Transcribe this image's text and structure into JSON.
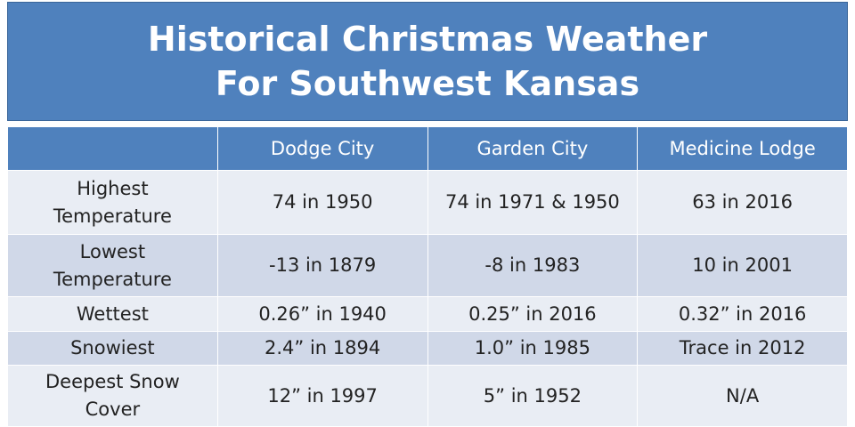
{
  "header": {
    "title": [
      "Historical Christmas Weather",
      "For Southwest Kansas"
    ]
  },
  "table": {
    "columns": [
      "Dodge City",
      "Garden City",
      "Medicine Lodge"
    ],
    "rows": [
      {
        "label": [
          "Highest",
          "Temperature"
        ],
        "cells": [
          "74 in 1950",
          "74 in 1971 & 1950",
          "63 in 2016"
        ]
      },
      {
        "label": [
          "Lowest",
          "Temperature"
        ],
        "cells": [
          "-13 in 1879",
          "-8 in 1983",
          "10 in 2001"
        ]
      },
      {
        "label": [
          "Wettest"
        ],
        "cells": [
          "0.26” in 1940",
          "0.25” in 2016",
          "0.32” in 2016"
        ]
      },
      {
        "label": [
          "Snowiest"
        ],
        "cells": [
          "2.4” in 1894",
          "1.0” in 1985",
          "Trace in 2012"
        ]
      },
      {
        "label": [
          "Deepest Snow",
          "Cover"
        ],
        "cells": [
          "12” in 1997",
          "5” in 1952",
          "N/A"
        ]
      }
    ]
  }
}
